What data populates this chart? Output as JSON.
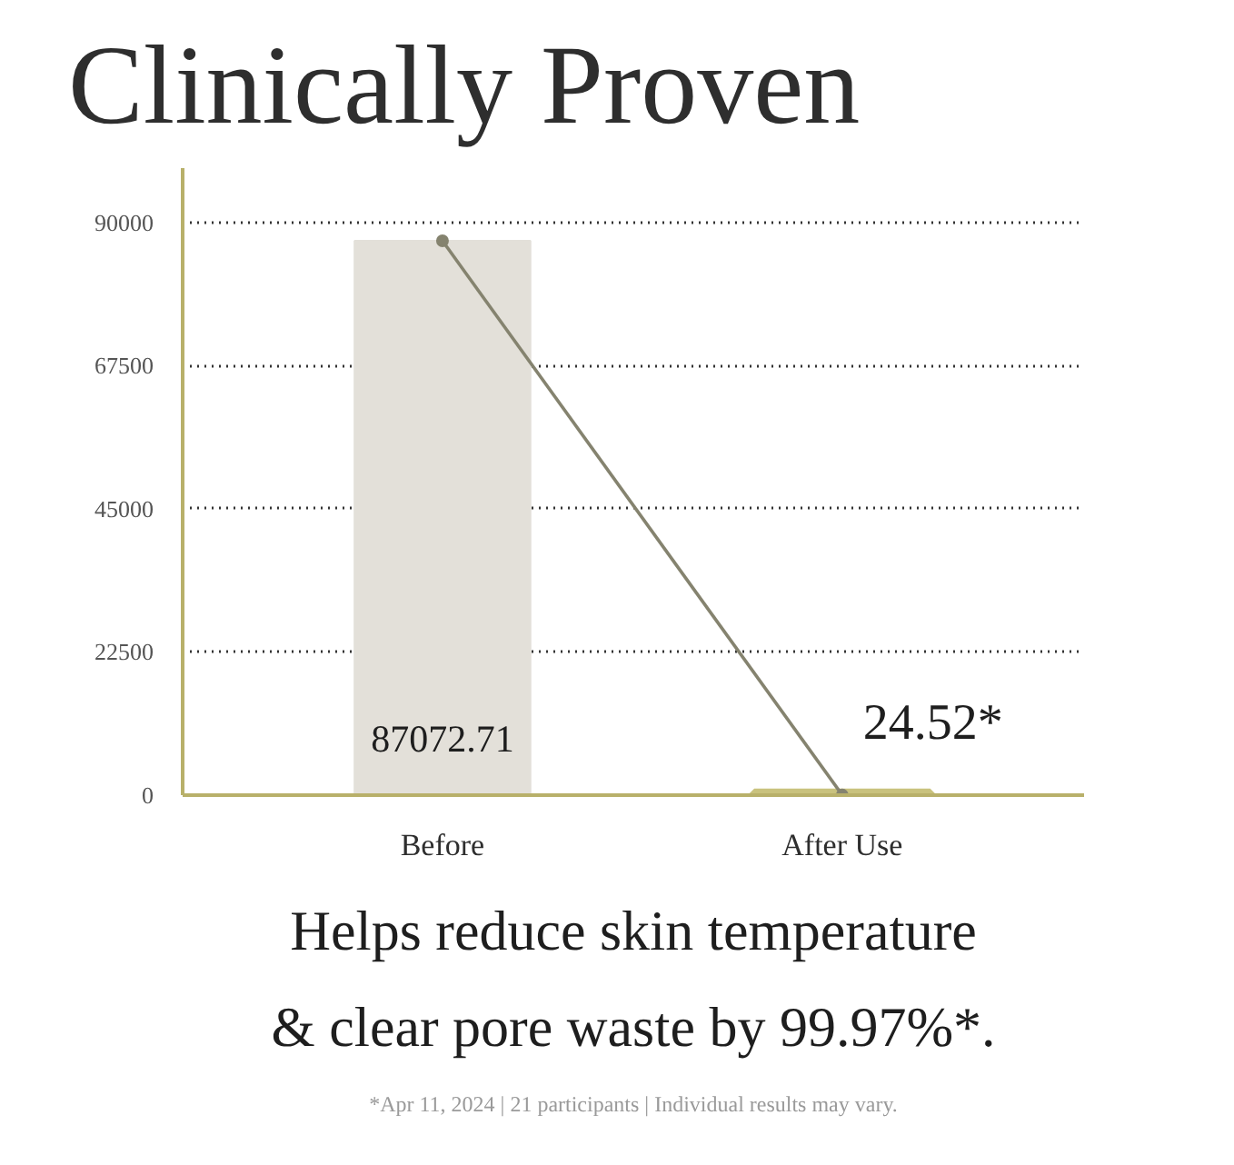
{
  "chart_data": {
    "type": "bar",
    "title": "Clinically Proven",
    "categories": [
      "Before",
      "After Use"
    ],
    "series": [
      {
        "colors": [
          "#e3e0d9",
          "#c9c27e"
        ],
        "values": [
          87072.71,
          24.52
        ],
        "value_labels": [
          "87072.71",
          "24.52*"
        ]
      },
      {
        "type": "line",
        "color": "#85836f",
        "values": [
          87072.71,
          24.52
        ]
      }
    ],
    "ylim": [
      0,
      98500
    ],
    "yticks": [
      0,
      22500,
      45000,
      67500,
      90000
    ],
    "grid": "y",
    "marker": "circle",
    "line_style": "solid",
    "annotations": [
      "Helps reduce skin temperature & clear pore waste by 99.97%*.",
      "*Apr 11, 2024 | 21 participants | Individual results may vary."
    ]
  }
}
